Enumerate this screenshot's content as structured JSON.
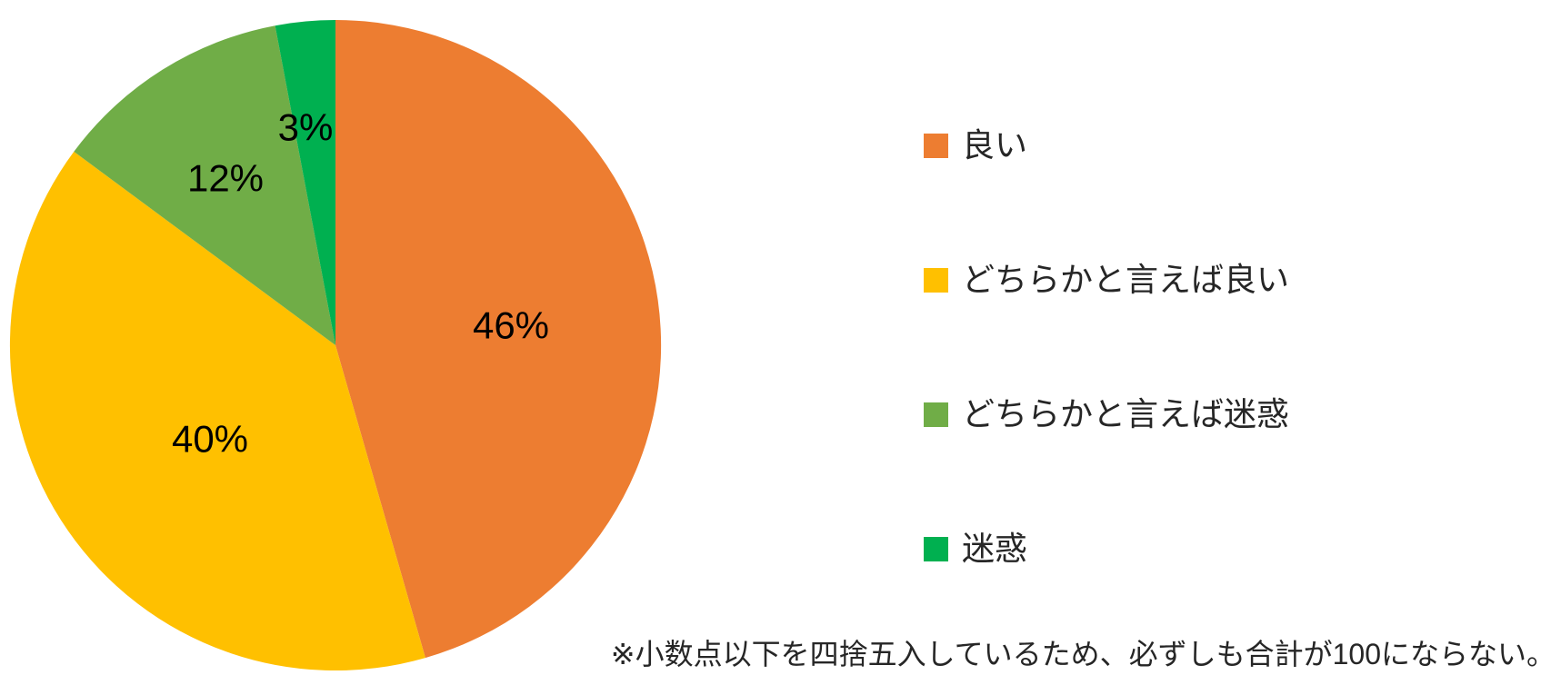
{
  "chart_data": {
    "type": "pie",
    "title": "",
    "categories": [
      "良い",
      "どちらかと言えば良い",
      "どちらかと言えば迷惑",
      "迷惑"
    ],
    "values": [
      46,
      40,
      12,
      3
    ],
    "value_unit": "%",
    "data_labels": [
      "46%",
      "40%",
      "12%",
      "3%"
    ],
    "colors": [
      "#ED7D31",
      "#FFC000",
      "#70AD47",
      "#00B050"
    ],
    "start_angle": "12-oclock",
    "direction": "clockwise",
    "legend_position": "right",
    "grid": false
  },
  "legend": {
    "items": [
      {
        "label": "良い",
        "color": "#ED7D31"
      },
      {
        "label": "どちらかと言えば良い",
        "color": "#FFC000"
      },
      {
        "label": "どちらかと言えば迷惑",
        "color": "#70AD47"
      },
      {
        "label": "迷惑",
        "color": "#00B050"
      }
    ]
  },
  "footnote": "※小数点以下を四捨五入しているため、必ずしも合計が100にならない。"
}
